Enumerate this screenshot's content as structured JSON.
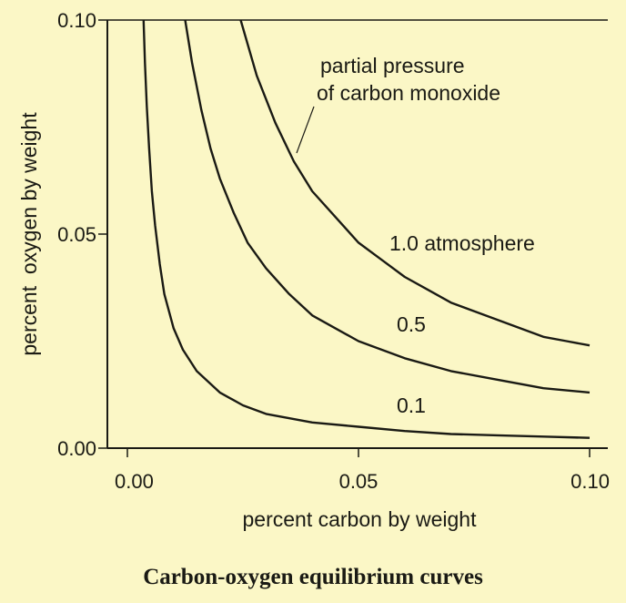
{
  "chart_data": {
    "type": "line",
    "title": "",
    "xlabel": "percent carbon by weight",
    "ylabel": "percent  oxygen by weight",
    "xlim": [
      0,
      0.1
    ],
    "ylim": [
      0,
      0.1
    ],
    "x_ticks": [
      "0.00",
      "0.05",
      "0.10"
    ],
    "y_ticks": [
      "0.00",
      "0.05",
      "0.10"
    ],
    "grid": false,
    "annotation": [
      "partial pressure",
      "of carbon monoxide"
    ],
    "series": [
      {
        "name": "1.0 atmosphere",
        "points": [
          [
            0.0245,
            0.1
          ],
          [
            0.028,
            0.087
          ],
          [
            0.032,
            0.076
          ],
          [
            0.036,
            0.067
          ],
          [
            0.04,
            0.06
          ],
          [
            0.045,
            0.054
          ],
          [
            0.05,
            0.048
          ],
          [
            0.055,
            0.044
          ],
          [
            0.06,
            0.04
          ],
          [
            0.065,
            0.037
          ],
          [
            0.07,
            0.034
          ],
          [
            0.075,
            0.032
          ],
          [
            0.08,
            0.03
          ],
          [
            0.085,
            0.028
          ],
          [
            0.09,
            0.026
          ],
          [
            0.095,
            0.025
          ],
          [
            0.1,
            0.024
          ]
        ]
      },
      {
        "name": "0.5",
        "points": [
          [
            0.0125,
            0.1
          ],
          [
            0.014,
            0.09
          ],
          [
            0.016,
            0.079
          ],
          [
            0.018,
            0.07
          ],
          [
            0.02,
            0.063
          ],
          [
            0.023,
            0.055
          ],
          [
            0.026,
            0.048
          ],
          [
            0.03,
            0.042
          ],
          [
            0.035,
            0.036
          ],
          [
            0.04,
            0.031
          ],
          [
            0.045,
            0.028
          ],
          [
            0.05,
            0.025
          ],
          [
            0.06,
            0.021
          ],
          [
            0.07,
            0.018
          ],
          [
            0.08,
            0.016
          ],
          [
            0.09,
            0.014
          ],
          [
            0.1,
            0.013
          ]
        ]
      },
      {
        "name": "0.1",
        "points": [
          [
            0.0035,
            0.1
          ],
          [
            0.0038,
            0.09
          ],
          [
            0.0042,
            0.08
          ],
          [
            0.0047,
            0.07
          ],
          [
            0.0053,
            0.06
          ],
          [
            0.006,
            0.052
          ],
          [
            0.007,
            0.043
          ],
          [
            0.008,
            0.036
          ],
          [
            0.01,
            0.028
          ],
          [
            0.012,
            0.023
          ],
          [
            0.015,
            0.018
          ],
          [
            0.02,
            0.013
          ],
          [
            0.025,
            0.01
          ],
          [
            0.03,
            0.008
          ],
          [
            0.04,
            0.006
          ],
          [
            0.05,
            0.005
          ],
          [
            0.06,
            0.004
          ],
          [
            0.07,
            0.0033
          ],
          [
            0.08,
            0.003
          ],
          [
            0.09,
            0.0027
          ],
          [
            0.1,
            0.0024
          ]
        ]
      }
    ]
  },
  "caption": "Carbon-oxygen equilibrium curves"
}
